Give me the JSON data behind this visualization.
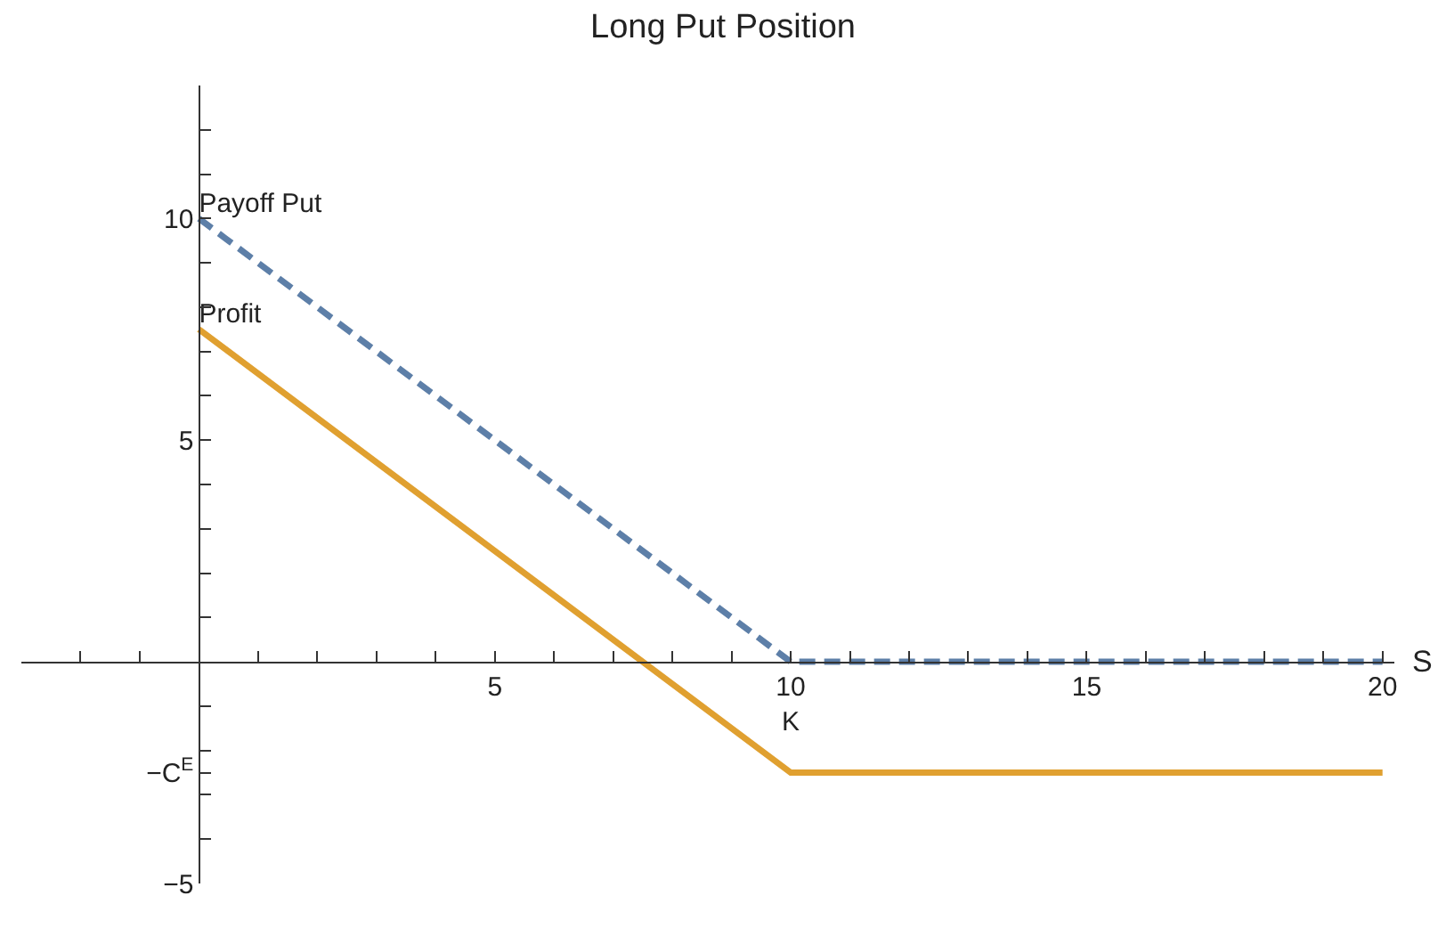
{
  "chart_data": {
    "type": "line",
    "title": "Long Put Position",
    "xlabel": "S",
    "series": [
      {
        "name": "Payoff Put",
        "color": "#5d7fa8",
        "line_style": "dashed",
        "x": [
          0,
          10,
          20
        ],
        "values": [
          10,
          0,
          0
        ]
      },
      {
        "name": "Profit",
        "color": "#e0a030",
        "line_style": "solid",
        "x": [
          0,
          10,
          20
        ],
        "values": [
          7.5,
          -2.5,
          -2.5
        ]
      }
    ],
    "xlim": [
      -3,
      20.2
    ],
    "ylim": [
      -5,
      13
    ],
    "xticks": [
      {
        "value": -2,
        "label": null
      },
      {
        "value": -1,
        "label": null
      },
      {
        "value": 1,
        "label": null
      },
      {
        "value": 2,
        "label": null
      },
      {
        "value": 3,
        "label": null
      },
      {
        "value": 4,
        "label": null
      },
      5,
      {
        "value": 6,
        "label": null
      },
      {
        "value": 7,
        "label": null
      },
      {
        "value": 8,
        "label": null
      },
      {
        "value": 9,
        "label": null
      },
      {
        "value": 10,
        "label": "10\nK"
      },
      {
        "value": 11,
        "label": null
      },
      {
        "value": 12,
        "label": null
      },
      {
        "value": 13,
        "label": null
      },
      {
        "value": 14,
        "label": null
      },
      15,
      {
        "value": 16,
        "label": null
      },
      {
        "value": 17,
        "label": null
      },
      {
        "value": 18,
        "label": null
      },
      {
        "value": 19,
        "label": null
      },
      20
    ],
    "yticks": [
      {
        "value": -5,
        "label": "−5"
      },
      {
        "value": -4,
        "label": null
      },
      {
        "value": -3,
        "label": null
      },
      {
        "value": -2.5,
        "label": "−C$^{E}$"
      },
      {
        "value": -2,
        "label": null
      },
      {
        "value": -1,
        "label": null
      },
      {
        "value": 1,
        "label": null
      },
      {
        "value": 2,
        "label": null
      },
      {
        "value": 3,
        "label": null
      },
      {
        "value": 4,
        "label": null
      },
      5,
      {
        "value": 6,
        "label": null
      },
      {
        "value": 7,
        "label": null
      },
      {
        "value": 8,
        "label": null
      },
      {
        "value": 9,
        "label": null
      },
      10,
      {
        "value": 11,
        "label": null
      },
      {
        "value": 12,
        "label": null
      }
    ],
    "legend": false,
    "marker": "none"
  }
}
